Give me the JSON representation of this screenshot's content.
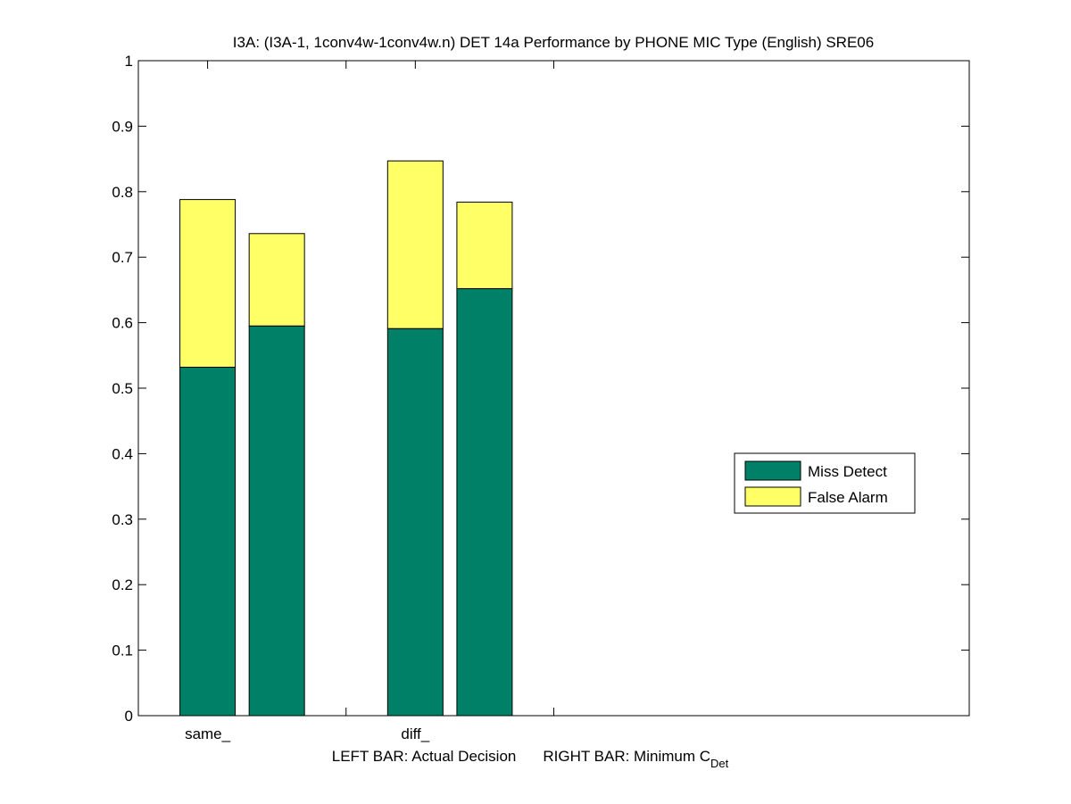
{
  "chart_data": {
    "type": "bar",
    "stacked": true,
    "title": "I3A: (I3A-1, 1conv4w-1conv4w.n) DET 14a Performance by PHONE MIC Type (English) SRE06",
    "xlabel": {
      "left_text": "LEFT BAR: Actual Decision",
      "right_text": "RIGHT BAR: Minimum C",
      "right_subscript": "Det"
    },
    "ylabel": "",
    "ylim": [
      0,
      1
    ],
    "yticks": [
      "0",
      "0.1",
      "0.2",
      "0.3",
      "0.4",
      "0.5",
      "0.6",
      "0.7",
      "0.8",
      "0.9",
      "1"
    ],
    "xlim": [
      0.5,
      6.5
    ],
    "categories": [
      "same_",
      "diff_"
    ],
    "category_positions": [
      1,
      2.5
    ],
    "group_divider_positions": [
      2,
      3.5
    ],
    "bar_groups": [
      {
        "category": "same_",
        "bars": [
          {
            "role": "actual_decision",
            "x": 1,
            "miss": 0.532,
            "false_alarm": 0.256
          },
          {
            "role": "minimum_cdet",
            "x": 1.5,
            "miss": 0.595,
            "false_alarm": 0.141
          }
        ]
      },
      {
        "category": "diff_",
        "bars": [
          {
            "role": "actual_decision",
            "x": 2.5,
            "miss": 0.591,
            "false_alarm": 0.256
          },
          {
            "role": "minimum_cdet",
            "x": 3,
            "miss": 0.652,
            "false_alarm": 0.132
          }
        ]
      }
    ],
    "series": [
      {
        "name": "Miss Detect",
        "color": "#008066"
      },
      {
        "name": "False Alarm",
        "color": "#ffff66"
      }
    ],
    "legend_position": "center-right",
    "grid": false
  }
}
